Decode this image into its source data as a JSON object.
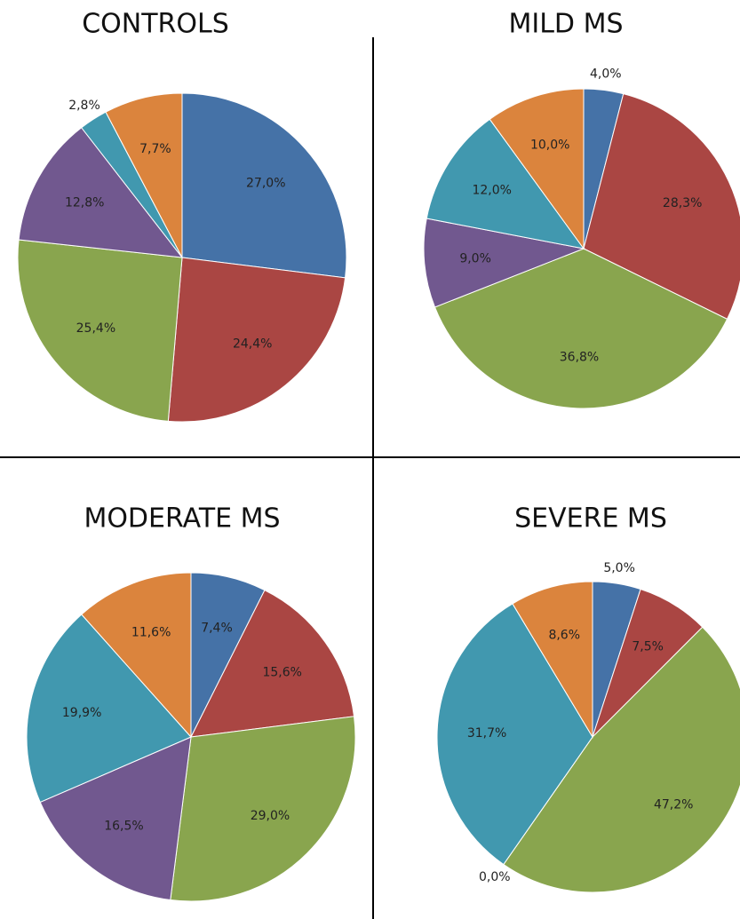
{
  "chart_data": [
    {
      "type": "pie",
      "title": "CONTROLS",
      "values": [
        27.0,
        24.4,
        25.4,
        12.8,
        2.8,
        7.7
      ],
      "value_labels": [
        "27,0%",
        "24,4%",
        "25,4%",
        "12,8%",
        "2,8%",
        "7,7%"
      ],
      "colors": [
        "#4572a7",
        "#aa4643",
        "#89a54e",
        "#71588f",
        "#4198af",
        "#db843d"
      ]
    },
    {
      "type": "pie",
      "title": "MILD MS",
      "values": [
        4.0,
        28.3,
        36.8,
        9.0,
        12.0,
        10.0
      ],
      "value_labels": [
        "4,0%",
        "28,3%",
        "36,8%",
        "9,0%",
        "12,0%",
        "10,0%"
      ],
      "colors": [
        "#4572a7",
        "#aa4643",
        "#89a54e",
        "#71588f",
        "#4198af",
        "#db843d"
      ]
    },
    {
      "type": "pie",
      "title": "MODERATE MS",
      "values": [
        7.4,
        15.6,
        29.0,
        16.5,
        19.9,
        11.6
      ],
      "value_labels": [
        "7,4%",
        "15,6%",
        "29,0%",
        "16,5%",
        "19,9%",
        "11,6%"
      ],
      "colors": [
        "#4572a7",
        "#aa4643",
        "#89a54e",
        "#71588f",
        "#4198af",
        "#db843d"
      ]
    },
    {
      "type": "pie",
      "title": "SEVERE MS",
      "values": [
        5.0,
        7.5,
        47.2,
        0.0,
        31.7,
        8.6
      ],
      "value_labels": [
        "5,0%",
        "7,5%",
        "47,2%",
        "0,0%",
        "31,7%",
        "8,6%"
      ],
      "colors": [
        "#4572a7",
        "#aa4643",
        "#89a54e",
        "#71588f",
        "#4198af",
        "#db843d"
      ]
    }
  ]
}
